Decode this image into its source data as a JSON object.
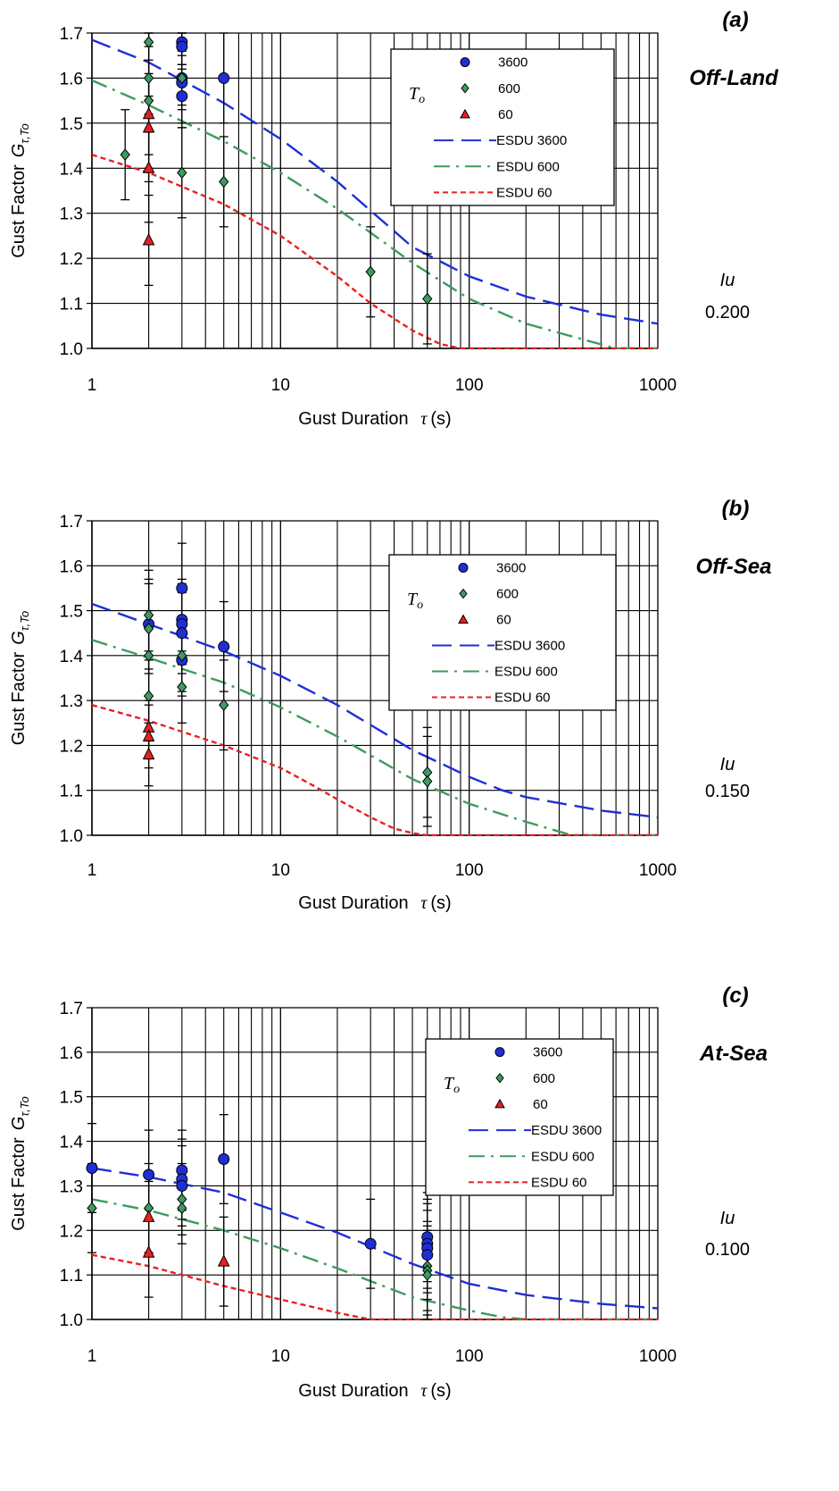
{
  "chart_data": [
    {
      "type": "scatter",
      "panel_id": "(a)",
      "condition": "Off-Land",
      "iu_label": "Iu",
      "iu_value": "0.200",
      "xlabel": "Gust Duration",
      "xlabel_sym": "τ",
      "xlabel_unit": "(s)",
      "ylabel": "Gust Factor",
      "ylabel_sym": "G",
      "ylabel_sub": "τ,To",
      "xscale": "log",
      "xlim": [
        1,
        1000
      ],
      "ylim": [
        1.0,
        1.7
      ],
      "x_ticks": [
        "1",
        "10",
        "100",
        "1000"
      ],
      "y_ticks": [
        "1.0",
        "1.1",
        "1.2",
        "1.3",
        "1.4",
        "1.5",
        "1.6",
        "1.7"
      ],
      "grid": true,
      "legend": {
        "position": "top-right",
        "title": "To",
        "items": [
          "3600",
          "600",
          "60",
          "ESDU 3600",
          "ESDU 600",
          "ESDU 60"
        ]
      },
      "series": [
        {
          "name": "3600",
          "kind": "marker",
          "marker": "circle",
          "color": "#1f2fd6",
          "points": [
            [
              3,
              1.68,
              0.05
            ],
            [
              3,
              1.67,
              0.05
            ],
            [
              3,
              1.6,
              0.06
            ],
            [
              3,
              1.59,
              0.06
            ],
            [
              3,
              1.56,
              0.07
            ],
            [
              5,
              1.6,
              0.1
            ]
          ]
        },
        {
          "name": "600",
          "kind": "marker",
          "marker": "diamond",
          "color": "#3c9b5f",
          "points": [
            [
              1.5,
              1.43,
              0.1
            ],
            [
              2,
              1.68,
              0.12
            ],
            [
              2,
              1.6,
              0.12
            ],
            [
              2,
              1.55,
              0.12
            ],
            [
              3,
              1.6,
              0.1
            ],
            [
              3,
              1.39,
              0.1
            ],
            [
              5,
              1.37,
              0.1
            ],
            [
              30,
              1.17,
              0.1
            ],
            [
              60,
              1.11,
              0.1
            ]
          ]
        },
        {
          "name": "60",
          "kind": "marker",
          "marker": "triangle",
          "color": "#e8201f",
          "points": [
            [
              2,
              1.52,
              0.12
            ],
            [
              2,
              1.49,
              0.12
            ],
            [
              2,
              1.4,
              0.12
            ],
            [
              2,
              1.24,
              0.1
            ]
          ]
        },
        {
          "name": "ESDU 3600",
          "kind": "line",
          "dash": "dashed",
          "color": "#1f2fd6",
          "x": [
            1,
            2,
            5,
            10,
            20,
            50,
            100,
            200,
            500,
            1000
          ],
          "y": [
            1.685,
            1.635,
            1.545,
            1.465,
            1.37,
            1.225,
            1.16,
            1.115,
            1.075,
            1.055
          ]
        },
        {
          "name": "ESDU 600",
          "kind": "line",
          "dash": "dash-dot",
          "color": "#3c9b5f",
          "x": [
            1,
            2,
            5,
            10,
            20,
            50,
            100,
            200,
            400,
            600,
            1000
          ],
          "y": [
            1.595,
            1.54,
            1.46,
            1.39,
            1.31,
            1.19,
            1.11,
            1.055,
            1.02,
            1.0,
            1.0
          ]
        },
        {
          "name": "ESDU 60",
          "kind": "line",
          "dash": "dotted",
          "color": "#e8201f",
          "x": [
            1,
            2,
            5,
            10,
            20,
            30,
            50,
            70,
            90,
            200,
            1000
          ],
          "y": [
            1.43,
            1.39,
            1.32,
            1.25,
            1.16,
            1.1,
            1.04,
            1.01,
            1.0,
            1.0,
            1.0
          ]
        }
      ]
    },
    {
      "type": "scatter",
      "panel_id": "(b)",
      "condition": "Off-Sea",
      "iu_label": "Iu",
      "iu_value": "0.150",
      "xlabel": "Gust Duration",
      "xlabel_sym": "τ",
      "xlabel_unit": "(s)",
      "ylabel": "Gust Factor",
      "ylabel_sym": "G",
      "ylabel_sub": "τ,To",
      "xscale": "log",
      "xlim": [
        1,
        1000
      ],
      "ylim": [
        1.0,
        1.7
      ],
      "x_ticks": [
        "1",
        "10",
        "100",
        "1000"
      ],
      "y_ticks": [
        "1.0",
        "1.1",
        "1.2",
        "1.3",
        "1.4",
        "1.5",
        "1.6",
        "1.7"
      ],
      "grid": true,
      "legend": {
        "position": "top-right",
        "title": "To",
        "items": [
          "3600",
          "600",
          "60",
          "ESDU 3600",
          "ESDU 600",
          "ESDU 60"
        ]
      },
      "series": [
        {
          "name": "3600",
          "kind": "marker",
          "marker": "circle",
          "color": "#1f2fd6",
          "points": [
            [
              2,
              1.47,
              0.1
            ],
            [
              3,
              1.55,
              0.1
            ],
            [
              3,
              1.48,
              0.09
            ],
            [
              3,
              1.47,
              0.09
            ],
            [
              3,
              1.45,
              0.09
            ],
            [
              3,
              1.39,
              0.08
            ],
            [
              5,
              1.42,
              0.1
            ]
          ]
        },
        {
          "name": "600",
          "kind": "marker",
          "marker": "diamond",
          "color": "#3c9b5f",
          "points": [
            [
              2,
              1.49,
              0.1
            ],
            [
              2,
              1.46,
              0.1
            ],
            [
              2,
              1.4,
              0.1
            ],
            [
              2,
              1.31,
              0.1
            ],
            [
              3,
              1.4,
              0.08
            ],
            [
              3,
              1.33,
              0.08
            ],
            [
              5,
              1.29,
              0.1
            ],
            [
              60,
              1.14,
              0.1
            ],
            [
              60,
              1.12,
              0.1
            ]
          ]
        },
        {
          "name": "60",
          "kind": "marker",
          "marker": "triangle",
          "color": "#e8201f",
          "points": [
            [
              2,
              1.24,
              0.07
            ],
            [
              2,
              1.22,
              0.07
            ],
            [
              2,
              1.18,
              0.07
            ]
          ]
        },
        {
          "name": "ESDU 3600",
          "kind": "line",
          "dash": "dashed",
          "color": "#1f2fd6",
          "x": [
            1,
            2,
            5,
            10,
            20,
            50,
            100,
            150,
            200,
            500,
            1000
          ],
          "y": [
            1.515,
            1.47,
            1.41,
            1.355,
            1.29,
            1.19,
            1.13,
            1.1,
            1.085,
            1.055,
            1.04
          ]
        },
        {
          "name": "ESDU 600",
          "kind": "line",
          "dash": "dash-dot",
          "color": "#3c9b5f",
          "x": [
            1,
            2,
            5,
            10,
            20,
            50,
            100,
            200,
            350,
            500,
            1000
          ],
          "y": [
            1.435,
            1.395,
            1.34,
            1.285,
            1.22,
            1.125,
            1.07,
            1.03,
            1.0,
            1.0,
            1.0
          ]
        },
        {
          "name": "ESDU 60",
          "kind": "line",
          "dash": "dotted",
          "color": "#e8201f",
          "x": [
            1,
            2,
            5,
            10,
            15,
            20,
            30,
            40,
            50,
            60,
            1000
          ],
          "y": [
            1.29,
            1.255,
            1.2,
            1.15,
            1.11,
            1.08,
            1.04,
            1.015,
            1.005,
            1.0,
            1.0
          ]
        }
      ]
    },
    {
      "type": "scatter",
      "panel_id": "(c)",
      "condition": "At-Sea",
      "iu_label": "Iu",
      "iu_value": "0.100",
      "xlabel": "Gust Duration",
      "xlabel_sym": "τ",
      "xlabel_unit": "(s)",
      "ylabel": "Gust Factor",
      "ylabel_sym": "G",
      "ylabel_sub": "τ,To",
      "xscale": "log",
      "xlim": [
        1,
        1000
      ],
      "ylim": [
        1.0,
        1.7
      ],
      "x_ticks": [
        "1",
        "10",
        "100",
        "1000"
      ],
      "y_ticks": [
        "1.0",
        "1.1",
        "1.2",
        "1.3",
        "1.4",
        "1.5",
        "1.6",
        "1.7"
      ],
      "grid": true,
      "legend": {
        "position": "top-right",
        "title": "To",
        "items": [
          "3600",
          "600",
          "60",
          "ESDU 3600",
          "ESDU 600",
          "ESDU 60"
        ]
      },
      "series": [
        {
          "name": "3600",
          "kind": "marker",
          "marker": "circle",
          "color": "#1f2fd6",
          "points": [
            [
              1,
              1.34,
              0.1
            ],
            [
              2,
              1.325,
              0.1
            ],
            [
              3,
              1.335,
              0.09
            ],
            [
              3,
              1.315,
              0.09
            ],
            [
              3,
              1.3,
              0.09
            ],
            [
              5,
              1.36,
              0.1
            ],
            [
              30,
              1.17,
              0.1
            ],
            [
              60,
              1.185,
              0.1
            ],
            [
              60,
              1.17,
              0.1
            ],
            [
              60,
              1.16,
              0.1
            ],
            [
              60,
              1.145,
              0.1
            ]
          ]
        },
        {
          "name": "600",
          "kind": "marker",
          "marker": "diamond",
          "color": "#3c9b5f",
          "points": [
            [
              1,
              1.25,
              0.1
            ],
            [
              2,
              1.25,
              0.1
            ],
            [
              3,
              1.27,
              0.08
            ],
            [
              3,
              1.25,
              0.08
            ],
            [
              60,
              1.12,
              0.1
            ],
            [
              60,
              1.11,
              0.1
            ],
            [
              60,
              1.1,
              0.1
            ]
          ]
        },
        {
          "name": "60",
          "kind": "marker",
          "marker": "triangle",
          "color": "#e8201f",
          "points": [
            [
              2,
              1.23,
              0.08
            ],
            [
              2,
              1.15,
              0.1
            ],
            [
              5,
              1.13,
              0.1
            ]
          ]
        },
        {
          "name": "ESDU 3600",
          "kind": "line",
          "dash": "dashed",
          "color": "#1f2fd6",
          "x": [
            1,
            2,
            5,
            10,
            20,
            50,
            100,
            200,
            500,
            1000
          ],
          "y": [
            1.34,
            1.32,
            1.285,
            1.24,
            1.195,
            1.125,
            1.08,
            1.055,
            1.035,
            1.025
          ]
        },
        {
          "name": "ESDU 600",
          "kind": "line",
          "dash": "dash-dot",
          "color": "#3c9b5f",
          "x": [
            1,
            2,
            5,
            10,
            20,
            50,
            100,
            150,
            200,
            1000
          ],
          "y": [
            1.27,
            1.245,
            1.2,
            1.16,
            1.115,
            1.05,
            1.02,
            1.005,
            1.0,
            1.0
          ]
        },
        {
          "name": "ESDU 60",
          "kind": "line",
          "dash": "dotted",
          "color": "#e8201f",
          "x": [
            1,
            2,
            5,
            10,
            20,
            30,
            1000
          ],
          "y": [
            1.145,
            1.12,
            1.075,
            1.045,
            1.015,
            1.0,
            1.0
          ]
        }
      ]
    }
  ]
}
